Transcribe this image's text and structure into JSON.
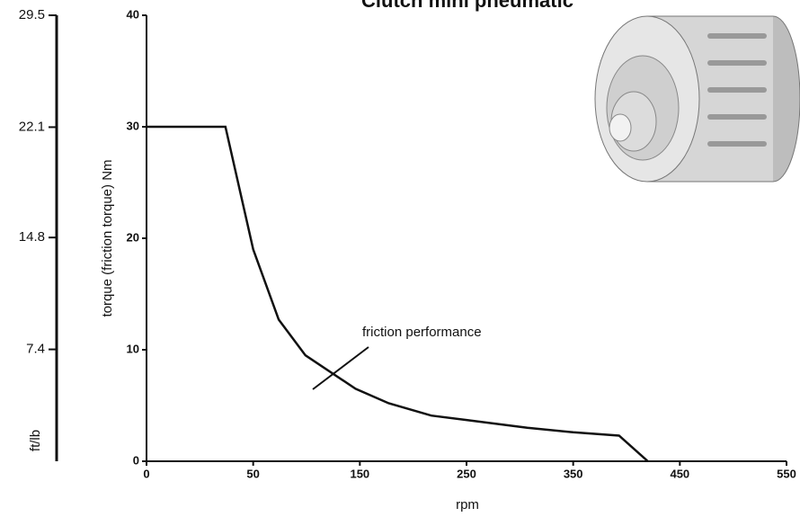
{
  "chart_data": {
    "type": "line",
    "title": "Clutch mini pneumatic",
    "x_label": "rpm",
    "y_label": "torque (friction torque) Nm",
    "y2_label": "ft/lb",
    "annotation": "friction performance",
    "xlim": [
      0,
      550
    ],
    "xticks": [
      0,
      50,
      150,
      250,
      350,
      450,
      550
    ],
    "ylim": [
      0,
      40
    ],
    "yticks": [
      0,
      10,
      20,
      30,
      40
    ],
    "y2lim": [
      0,
      29.5
    ],
    "y2ticks": [
      7.4,
      14.8,
      22.1,
      29.5
    ],
    "series": [
      {
        "name": "friction performance",
        "color": "#111111",
        "x": [
          0,
          37,
          50,
          74,
          99,
          146,
          177,
          217,
          250,
          307,
          350,
          393,
          420
        ],
        "values": [
          30,
          30,
          19,
          12.7,
          9.5,
          6.5,
          5.2,
          4.1,
          3.7,
          3.0,
          2.6,
          2.3,
          0
        ]
      }
    ]
  }
}
